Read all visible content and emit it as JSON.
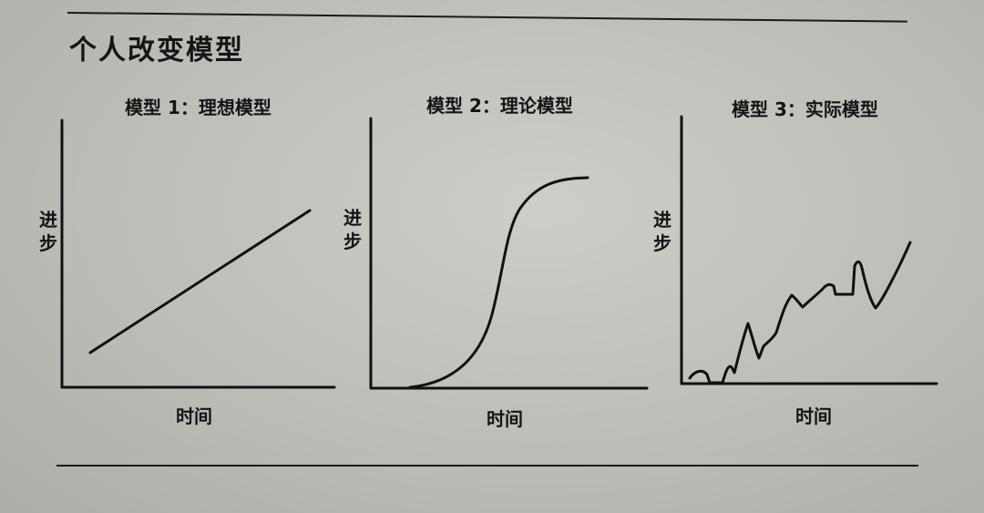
{
  "heading": "个人改变模型",
  "panels": [
    {
      "title": "模型 1：理想模型",
      "ylabel": "进步",
      "xlabel": "时间"
    },
    {
      "title": "模型 2：理论模型",
      "ylabel": "进步",
      "xlabel": "时间"
    },
    {
      "title": "模型 3：实际模型",
      "ylabel": "进步",
      "xlabel": "时间"
    }
  ],
  "colors": {
    "ink": "#111111",
    "paper": "#c4c2bd"
  }
}
